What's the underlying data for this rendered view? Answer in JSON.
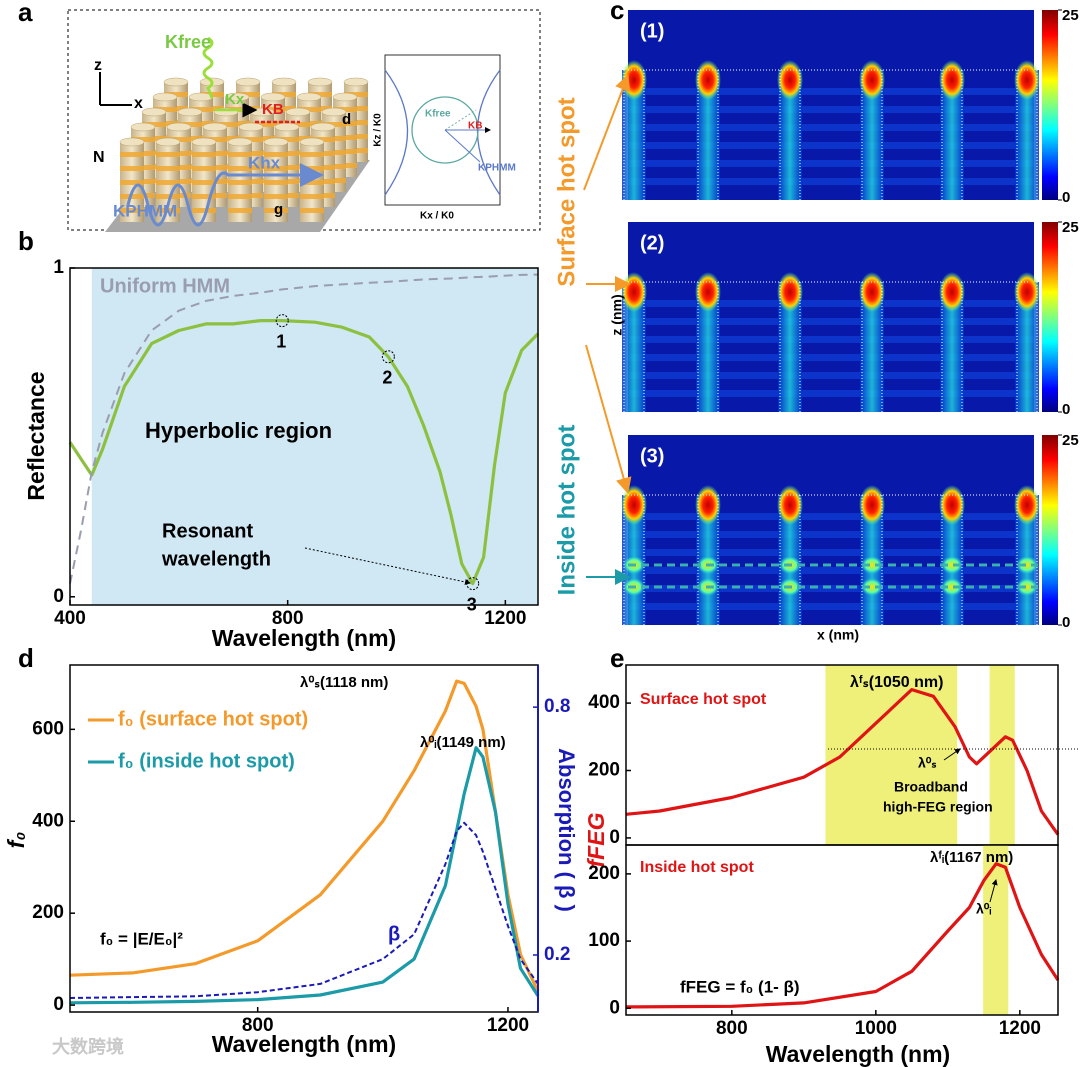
{
  "panel_labels": [
    "a",
    "b",
    "c",
    "d",
    "e"
  ],
  "diagram": {
    "labels": [
      "z",
      "x",
      "Kfree",
      "Kx",
      "KB",
      "d",
      "N",
      "Khx",
      "KPHMM",
      "g"
    ],
    "inset_labels": [
      "Kz / K0",
      "Kx / K0",
      "Kfree",
      "KB",
      "KPHMM"
    ]
  },
  "heatmaps": {
    "panels": [
      "(1)",
      "(2)",
      "(3)"
    ],
    "colorbar_ticks": [
      0,
      25
    ],
    "zlabel": "z (nm)",
    "xlabel": "x (nm)",
    "surface": "Surface hot spot",
    "inside": "Inside hot spot"
  },
  "watermark": "大数跨境",
  "chart_data": [
    {
      "type": "line",
      "xlabel": "Wavelength (nm)",
      "ylabel": "Reflectance",
      "x": [
        400,
        420,
        440,
        460,
        500,
        550,
        600,
        650,
        700,
        750,
        790,
        850,
        900,
        950,
        985,
        1020,
        1050,
        1080,
        1100,
        1120,
        1140,
        1160,
        1180,
        1200,
        1230,
        1260
      ],
      "series": [
        {
          "color": "#8dc03f",
          "style": "solid",
          "values": [
            0.47,
            0.42,
            0.37,
            0.45,
            0.64,
            0.77,
            0.81,
            0.83,
            0.83,
            0.84,
            0.84,
            0.835,
            0.82,
            0.79,
            0.73,
            0.64,
            0.52,
            0.38,
            0.25,
            0.1,
            0.04,
            0.12,
            0.4,
            0.62,
            0.75,
            0.8
          ]
        },
        {
          "name": "Uniform HMM",
          "color": "#9a9cb0",
          "style": "dashed",
          "values": [
            0.04,
            0.2,
            0.38,
            0.5,
            0.68,
            0.81,
            0.87,
            0.9,
            0.915,
            0.925,
            0.935,
            0.945,
            0.95,
            0.955,
            0.958,
            0.962,
            0.965,
            0.967,
            0.968,
            0.97,
            0.972,
            0.973,
            0.975,
            0.977,
            0.979,
            0.98
          ]
        }
      ],
      "shaded": [
        [
          440,
          1260
        ]
      ],
      "shade_color": "#cfe8f3",
      "points": [
        {
          "label": "1",
          "x": 790,
          "y": 0.84
        },
        {
          "label": "2",
          "x": 985,
          "y": 0.73
        },
        {
          "label": "3",
          "x": 1140,
          "y": 0.04
        }
      ],
      "annotations": [
        "Hyperbolic region",
        "Resonant",
        "wavelength"
      ],
      "xlim": [
        400,
        1260
      ],
      "ylim": [
        -0.025,
        1
      ],
      "xticks": [
        400,
        800,
        1200
      ],
      "yticks": [
        0,
        1
      ]
    },
    {
      "type": "line",
      "xlabel": "Wavelength (nm)",
      "ylabel": "f₀",
      "y2label": "Absorption ( β )",
      "x": [
        500,
        600,
        700,
        800,
        900,
        1000,
        1050,
        1100,
        1118,
        1130,
        1149,
        1160,
        1180,
        1200,
        1220,
        1248
      ],
      "series": [
        {
          "name": "f₀ (surface hot spot)",
          "color": "#f39a2b",
          "style": "solid",
          "values": [
            65,
            70,
            90,
            140,
            240,
            400,
            510,
            640,
            705,
            700,
            650,
            600,
            420,
            240,
            110,
            30
          ]
        },
        {
          "name": "f₀ (inside hot spot)",
          "color": "#1b9aa8",
          "style": "solid",
          "values": [
            5,
            6,
            8,
            12,
            22,
            50,
            100,
            260,
            380,
            460,
            560,
            540,
            420,
            220,
            80,
            20
          ]
        },
        {
          "name": "β",
          "color": "#1a1ab8",
          "style": "dashed",
          "axis": "y2",
          "values": [
            0.096,
            0.098,
            0.1,
            0.11,
            0.13,
            0.19,
            0.25,
            0.42,
            0.5,
            0.52,
            0.49,
            0.45,
            0.36,
            0.27,
            0.19,
            0.13
          ]
        }
      ],
      "annotations": [
        "λ⁰ₛ(1118 nm)",
        "λ⁰ᵢ(1149 nm)",
        "f₀ = |E/E₀|²"
      ],
      "xlim": [
        500,
        1248
      ],
      "ylim": [
        -15,
        740
      ],
      "y2lim": [
        0.062,
        0.902
      ],
      "xticks": [
        800,
        1200
      ],
      "yticks": [
        0,
        200,
        400,
        600
      ],
      "y2ticks": [
        0.2,
        0.8
      ]
    },
    {
      "type": "line",
      "ylabel": "fFEG",
      "x": [
        653,
        700,
        800,
        900,
        950,
        1000,
        1050,
        1080,
        1110,
        1130,
        1140,
        1160,
        1180,
        1190,
        1210,
        1230,
        1253
      ],
      "series": [
        {
          "color": "#e01414",
          "style": "solid",
          "values": [
            70,
            80,
            120,
            180,
            240,
            340,
            440,
            420,
            330,
            240,
            220,
            260,
            300,
            290,
            200,
            80,
            10
          ]
        }
      ],
      "shaded": [
        [
          930,
          1113
        ],
        [
          1158,
          1193
        ]
      ],
      "shade_color": "#eef07a",
      "annotations": [
        "Surface hot spot",
        "λᶠₛ(1050 nm)",
        "λ⁰ₛ",
        "Broadband",
        "high-FEG  region"
      ],
      "xlim": [
        653,
        1253
      ],
      "ylim": [
        -21,
        513
      ],
      "yticks": [
        0,
        200,
        400
      ]
    },
    {
      "type": "line",
      "xlabel": "Wavelength (nm)",
      "x": [
        653,
        800,
        900,
        1000,
        1050,
        1100,
        1130,
        1150,
        1167,
        1180,
        1200,
        1230,
        1253
      ],
      "series": [
        {
          "color": "#e01414",
          "style": "solid",
          "values": [
            2,
            3,
            8,
            25,
            55,
            115,
            150,
            190,
            215,
            210,
            150,
            80,
            42
          ]
        }
      ],
      "shaded": [
        [
          1149,
          1184
        ]
      ],
      "shade_color": "#eef07a",
      "annotations": [
        "Inside hot spot",
        "λᶠᵢ(1167 nm)",
        "λ⁰ᵢ",
        "fFEG = f₀ (1- β)"
      ],
      "xlim": [
        653,
        1253
      ],
      "ylim": [
        -10,
        243
      ],
      "xticks": [
        800,
        1000,
        1200
      ],
      "yticks": [
        0,
        100,
        200
      ]
    }
  ]
}
